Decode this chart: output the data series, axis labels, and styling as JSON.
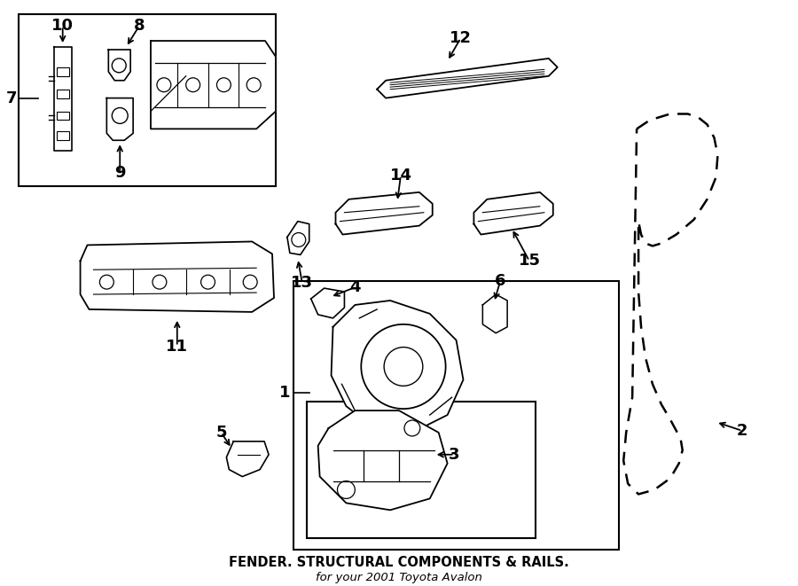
{
  "bg_color": "#ffffff",
  "line_color": "#000000",
  "title": "FENDER. STRUCTURAL COMPONENTS & RAILS.",
  "subtitle": "for your 2001 Toyota Avalon",
  "fig_width": 9.0,
  "fig_height": 6.61
}
